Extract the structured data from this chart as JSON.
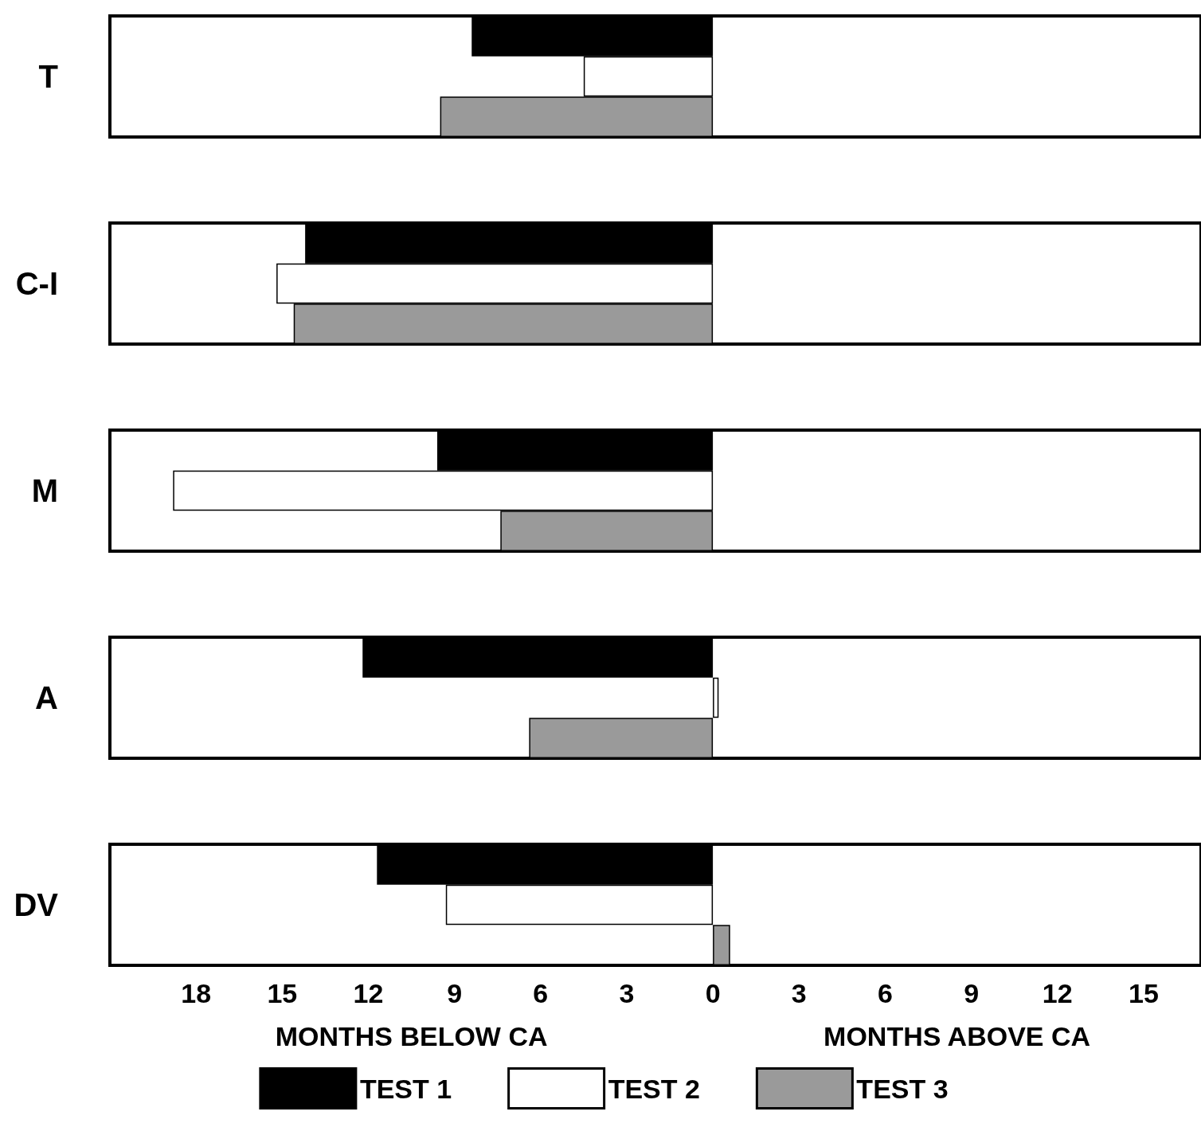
{
  "chart_data": {
    "type": "bar",
    "orientation": "horizontal",
    "categories": [
      "T",
      "C-I",
      "M",
      "A",
      "DV"
    ],
    "series": [
      {
        "name": "TEST 1",
        "color": "#000000",
        "values": [
          -8.4,
          -14.2,
          -9.6,
          -12.2,
          -11.7
        ]
      },
      {
        "name": "TEST 2",
        "color": "#ffffff",
        "values": [
          -4.5,
          -15.2,
          -18.8,
          0.2,
          -9.3
        ]
      },
      {
        "name": "TEST 3",
        "color": "#9a9a9a",
        "values": [
          -9.5,
          -14.6,
          -7.4,
          -6.4,
          0.6
        ]
      }
    ],
    "xlim": [
      -21,
      17
    ],
    "xticks": [
      {
        "value": -18,
        "label": "18"
      },
      {
        "value": -15,
        "label": "15"
      },
      {
        "value": -12,
        "label": "12"
      },
      {
        "value": -9,
        "label": "9"
      },
      {
        "value": -6,
        "label": "6"
      },
      {
        "value": -3,
        "label": "3"
      },
      0,
      3,
      6,
      9,
      12,
      15
    ],
    "xlabel": "MONTHS BELOW CA",
    "annotations": [
      "MONTHS ABOVE CA"
    ],
    "legend": "bottom",
    "grid": false
  }
}
